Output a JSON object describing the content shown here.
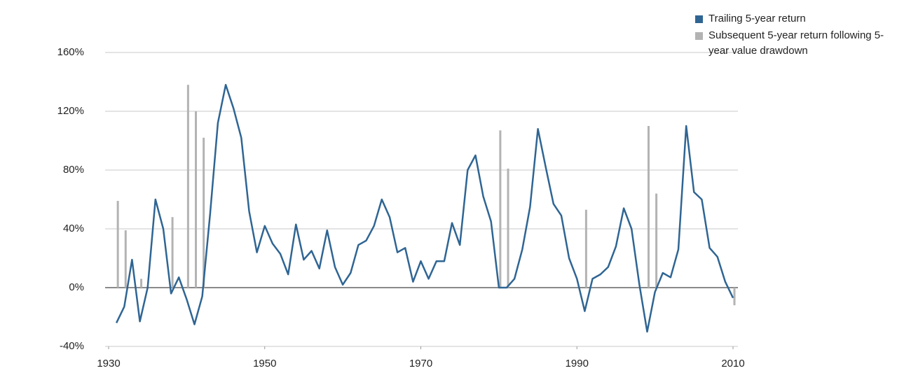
{
  "chart_data": {
    "type": "line",
    "ylim": [
      -40,
      160
    ],
    "yticks": [
      {
        "value": -40,
        "label": "-40%"
      },
      {
        "value": 0,
        "label": "0%"
      },
      {
        "value": 40,
        "label": "40%"
      },
      {
        "value": 80,
        "label": "80%"
      },
      {
        "value": 120,
        "label": "120%"
      },
      {
        "value": 160,
        "label": "160%"
      }
    ],
    "xlim": [
      1930,
      2010
    ],
    "xticks": [
      1930,
      1950,
      1970,
      1990,
      2010
    ],
    "grid": true,
    "legend": "top-right",
    "series": [
      {
        "name": "Trailing 5-year return",
        "color": "#2f6593",
        "type": "line",
        "x": [
          1931,
          1932,
          1933,
          1934,
          1935,
          1936,
          1937,
          1938,
          1939,
          1940,
          1941,
          1942,
          1943,
          1944,
          1945,
          1946,
          1947,
          1948,
          1949,
          1950,
          1951,
          1952,
          1953,
          1954,
          1955,
          1956,
          1957,
          1958,
          1959,
          1960,
          1961,
          1962,
          1963,
          1964,
          1965,
          1966,
          1967,
          1968,
          1969,
          1970,
          1971,
          1972,
          1973,
          1974,
          1975,
          1976,
          1977,
          1978,
          1979,
          1980,
          1981,
          1982,
          1983,
          1984,
          1985,
          1986,
          1987,
          1988,
          1989,
          1990,
          1991,
          1992,
          1993,
          1994,
          1995,
          1996,
          1997,
          1998,
          1999,
          2000,
          2001,
          2002,
          2003,
          2004,
          2005,
          2006,
          2007,
          2008,
          2009,
          2010
        ],
        "values": [
          -24,
          -13,
          19,
          -23,
          0,
          60,
          40,
          -4,
          7,
          -8,
          -25,
          -6,
          50,
          112,
          138,
          122,
          102,
          52,
          24,
          42,
          30,
          23,
          9,
          43,
          19,
          25,
          13,
          39,
          14,
          2,
          10,
          29,
          32,
          42,
          60,
          48,
          24,
          27,
          4,
          18,
          6,
          18,
          18,
          44,
          29,
          80,
          90,
          62,
          45,
          0,
          0,
          6,
          26,
          55,
          108,
          82,
          57,
          49,
          20,
          6,
          -16,
          6,
          9,
          14,
          28,
          54,
          40,
          2,
          -30,
          -3,
          10,
          7,
          26,
          110,
          65,
          60,
          27,
          21,
          4,
          -7
        ]
      },
      {
        "name": "Subsequent 5-year return following 5-year value drawdown",
        "color": "#b3b3b3",
        "type": "bar",
        "x": [
          1931,
          1932,
          1934,
          1938,
          1940,
          1941,
          1942,
          1980,
          1981,
          1991,
          1999,
          2000,
          2010
        ],
        "values": [
          59,
          39,
          6,
          48,
          138,
          120,
          102,
          107,
          81,
          53,
          110,
          64,
          -12
        ]
      }
    ]
  }
}
